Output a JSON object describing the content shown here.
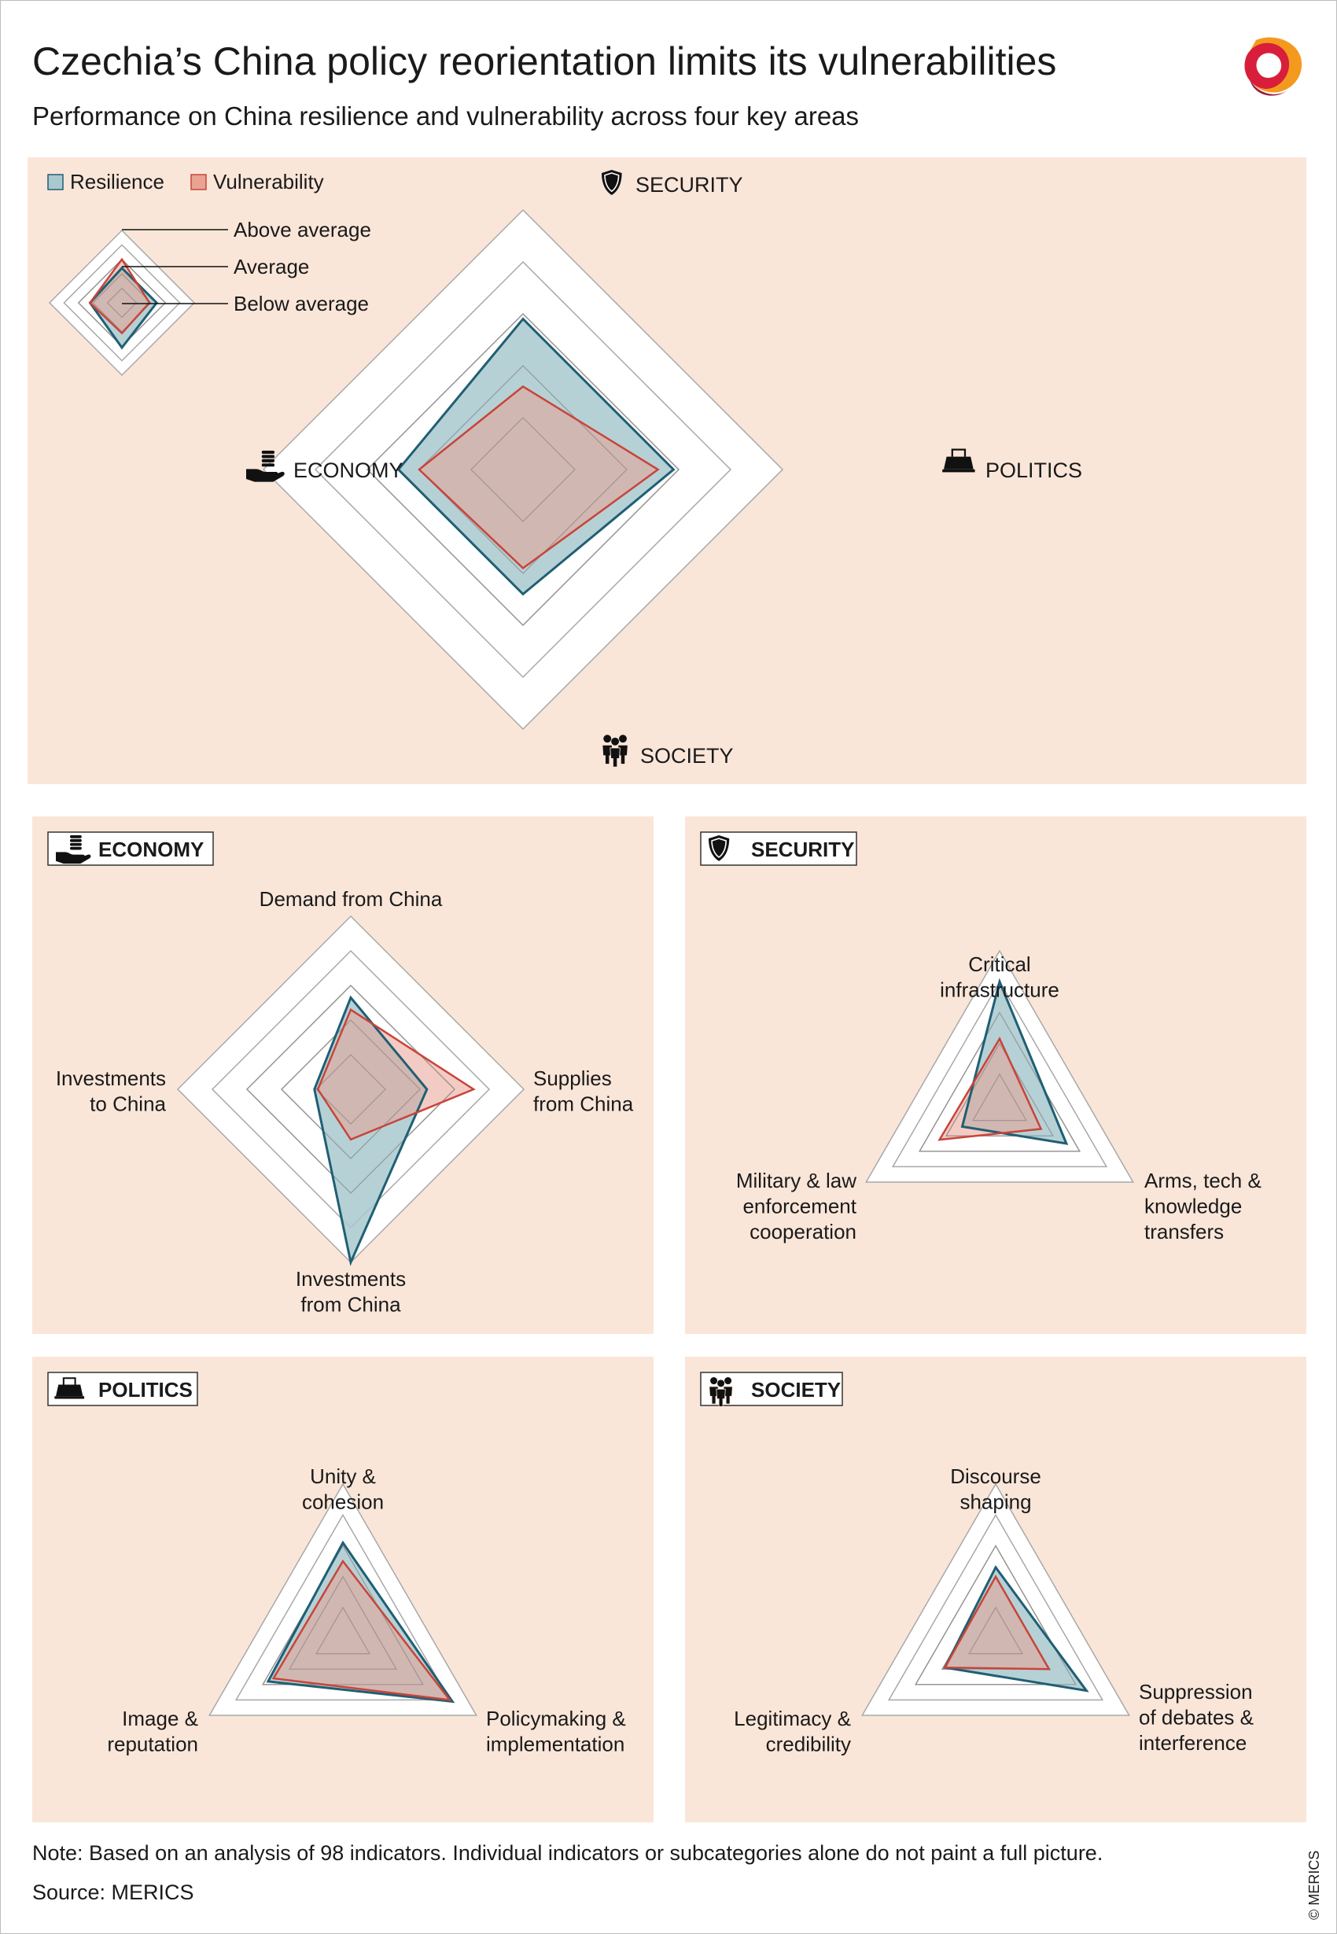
{
  "title": "Czechia’s China policy reorientation limits its vulnerabilities",
  "subtitle": "Performance on China resilience and vulnerability across four key areas",
  "legend": {
    "resilience": "Resilience",
    "vulnerability": "Vulnerability",
    "levels": [
      "Above average",
      "Average",
      "Below average"
    ]
  },
  "colors": {
    "background": "#fae6d9",
    "resilience_fill": "#a9c9cf",
    "resilience_line": "#1f5f73",
    "vulnerability_fill": "#e8a393",
    "vulnerability_line": "#c9443a",
    "overlap": "#a89a9a",
    "grid": "#a8a8a8"
  },
  "icons": {
    "security": "shield-icon",
    "politics": "ballot-box-icon",
    "society": "people-icon",
    "economy": "coins-hand-icon"
  },
  "chart_data": [
    {
      "type": "radar",
      "id": "overview",
      "axes": [
        "SECURITY",
        "POLITICS",
        "SOCIETY",
        "ECONOMY"
      ],
      "scale": {
        "min": 0,
        "max": 1
      },
      "series": [
        {
          "name": "Resilience",
          "values": [
            0.58,
            0.58,
            0.48,
            0.48
          ]
        },
        {
          "name": "Vulnerability",
          "values": [
            0.32,
            0.52,
            0.38,
            0.4
          ]
        }
      ]
    },
    {
      "type": "radar",
      "id": "economy",
      "panel_label": "ECONOMY",
      "axes": [
        "Demand from China",
        "Supplies from China",
        "Investments from China",
        "Investments to China"
      ],
      "scale": {
        "min": 0,
        "max": 1
      },
      "series": [
        {
          "name": "Resilience",
          "values": [
            0.53,
            0.44,
            1.0,
            0.21
          ]
        },
        {
          "name": "Vulnerability",
          "values": [
            0.46,
            0.71,
            0.29,
            0.19
          ]
        }
      ]
    },
    {
      "type": "radar",
      "id": "security",
      "panel_label": "SECURITY",
      "axes": [
        "Critical infrastructure",
        "Arms, tech & knowledge transfers",
        "Military & law enforcement cooperation"
      ],
      "scale": {
        "min": 0,
        "max": 1
      },
      "series": [
        {
          "name": "Resilience",
          "values": [
            0.8,
            0.5,
            0.28
          ]
        },
        {
          "name": "Vulnerability",
          "values": [
            0.43,
            0.31,
            0.45
          ]
        }
      ]
    },
    {
      "type": "radar",
      "id": "politics",
      "panel_label": "POLITICS",
      "axes": [
        "Unity & cohesion",
        "Policymaking & implementation",
        "Image & reputation"
      ],
      "scale": {
        "min": 0,
        "max": 1
      },
      "series": [
        {
          "name": "Resilience",
          "values": [
            0.62,
            0.82,
            0.56
          ]
        },
        {
          "name": "Vulnerability",
          "values": [
            0.5,
            0.8,
            0.52
          ]
        }
      ]
    },
    {
      "type": "radar",
      "id": "society",
      "panel_label": "SOCIETY",
      "axes": [
        "Discourse shaping",
        "Suppression of debates & interference",
        "Legitimacy & credibility"
      ],
      "scale": {
        "min": 0,
        "max": 1
      },
      "series": [
        {
          "name": "Resilience",
          "values": [
            0.46,
            0.68,
            0.38
          ]
        },
        {
          "name": "Vulnerability",
          "values": [
            0.4,
            0.4,
            0.38
          ]
        }
      ]
    }
  ],
  "labels": {
    "economy": [
      [
        "Demand from China"
      ],
      [
        "Supplies",
        "from China"
      ],
      [
        "Investments",
        "from China"
      ],
      [
        "Investments",
        "to China"
      ]
    ],
    "security": [
      [
        "Critical",
        "infrastructure"
      ],
      [
        "Arms, tech &",
        "knowledge",
        "transfers"
      ],
      [
        "Military & law",
        "enforcement",
        "cooperation"
      ]
    ],
    "politics": [
      [
        "Unity &",
        "cohesion"
      ],
      [
        "Policymaking &",
        "implementation"
      ],
      [
        "Image &",
        "reputation"
      ]
    ],
    "society": [
      [
        "Discourse",
        "shaping"
      ],
      [
        "Suppression",
        "of debates &",
        "interference"
      ],
      [
        "Legitimacy &",
        "credibility"
      ]
    ]
  },
  "note": "Note: Based on an analysis of 98 indicators. Individual indicators or subcategories alone do not paint a full picture.",
  "source": "Source: MERICS",
  "copyright": "© MERICS"
}
